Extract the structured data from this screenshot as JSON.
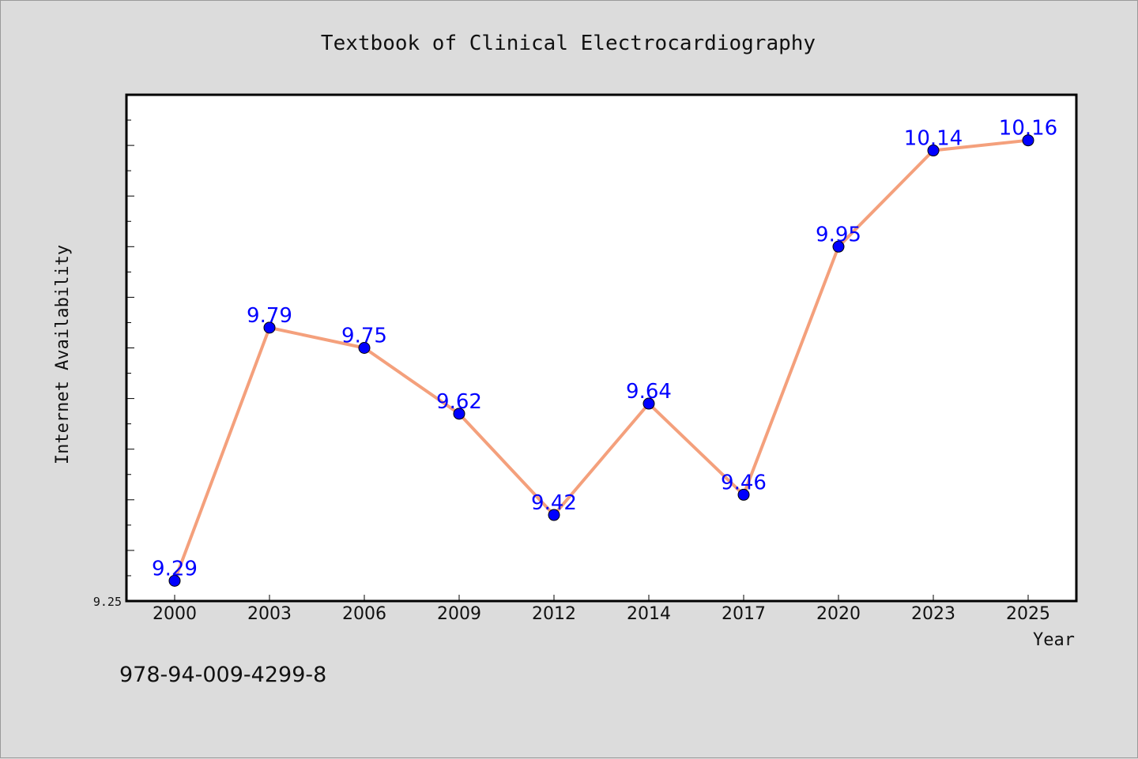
{
  "chart_data": {
    "type": "line",
    "title": "Textbook of Clinical Electrocardiography",
    "xlabel": "Year",
    "ylabel": "Internet Availability",
    "categories": [
      "2000",
      "2003",
      "2006",
      "2009",
      "2012",
      "2014",
      "2017",
      "2020",
      "2023",
      "2025"
    ],
    "series": [
      {
        "values": [
          9.29,
          9.79,
          9.75,
          9.62,
          9.42,
          9.64,
          9.46,
          9.95,
          10.14,
          10.16
        ],
        "labels": [
          "9.29",
          "9.79",
          "9.75",
          "9.62",
          "9.42",
          "9.64",
          "9.46",
          "9.95",
          "10.14",
          "10.16"
        ]
      }
    ],
    "ylim": [
      9.25,
      10.25
    ],
    "y_tick_labels": [
      "9.25"
    ],
    "grid": false,
    "colors": {
      "line": "#f4a07c",
      "marker": "#0000ff",
      "data_label": "#0000ff"
    }
  },
  "annotation": {
    "isbn": "978-94-009-4299-8"
  }
}
